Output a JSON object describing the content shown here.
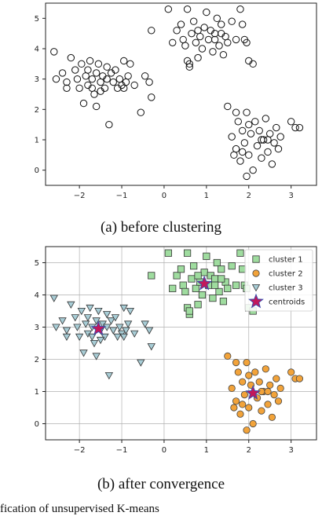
{
  "captions": {
    "a": "(a) before clustering",
    "b": "(b) after convergence",
    "figure": "fication of unsupervised K-means"
  },
  "colors": {
    "cluster1": "#9fdc9f",
    "cluster2": "#f2a33a",
    "cluster3": "#a8cdd6",
    "centroid": "#c2185b",
    "centroid_edge": "#3949ab",
    "grid": "#b0b0b0"
  },
  "chart_data": [
    {
      "type": "scatter",
      "title": "",
      "xlabel": "",
      "ylabel": "",
      "xlim": [
        -2.8,
        3.6
      ],
      "ylim": [
        -0.5,
        5.5
      ],
      "xticks": [
        -2,
        -1,
        0,
        1,
        2,
        3
      ],
      "yticks": [
        0,
        1,
        2,
        3,
        4,
        5
      ],
      "grid": false,
      "series": [
        {
          "marker": "open-circle",
          "points": [
            [
              -2.6,
              3.9
            ],
            [
              -2.55,
              3.0
            ],
            [
              -2.4,
              3.2
            ],
            [
              -2.3,
              2.9
            ],
            [
              -2.2,
              3.7
            ],
            [
              -2.1,
              3.3
            ],
            [
              -2.05,
              3.0
            ],
            [
              -2.0,
              2.7
            ],
            [
              -1.95,
              3.5
            ],
            [
              -1.9,
              2.2
            ],
            [
              -1.85,
              3.1
            ],
            [
              -1.8,
              2.8
            ],
            [
              -1.75,
              3.6
            ],
            [
              -1.7,
              3.0
            ],
            [
              -1.65,
              2.5
            ],
            [
              -1.6,
              3.2
            ],
            [
              -1.6,
              2.1
            ],
            [
              -1.55,
              3.5
            ],
            [
              -1.5,
              2.9
            ],
            [
              -1.45,
              3.1
            ],
            [
              -1.4,
              2.7
            ],
            [
              -1.35,
              3.0
            ],
            [
              -1.3,
              1.5
            ],
            [
              -1.25,
              3.2
            ],
            [
              -1.2,
              2.9
            ],
            [
              -1.15,
              3.3
            ],
            [
              -1.1,
              2.7
            ],
            [
              -1.05,
              3.0
            ],
            [
              -1.0,
              2.8
            ],
            [
              -0.95,
              3.6
            ],
            [
              -0.9,
              2.9
            ],
            [
              -0.85,
              3.1
            ],
            [
              -0.8,
              3.5
            ],
            [
              -0.7,
              2.8
            ],
            [
              -0.55,
              1.9
            ],
            [
              -0.45,
              3.1
            ],
            [
              -0.35,
              2.9
            ],
            [
              -0.3,
              2.4
            ],
            [
              -1.7,
              2.7
            ],
            [
              -2.3,
              2.7
            ],
            [
              -1.35,
              3.4
            ],
            [
              -1.8,
              3.3
            ],
            [
              -0.95,
              2.7
            ],
            [
              -1.5,
              2.6
            ],
            [
              0.1,
              5.3
            ],
            [
              0.2,
              4.2
            ],
            [
              0.3,
              4.6
            ],
            [
              0.4,
              4.8
            ],
            [
              0.45,
              4.3
            ],
            [
              0.5,
              4.1
            ],
            [
              0.55,
              3.6
            ],
            [
              0.6,
              3.4
            ],
            [
              0.65,
              4.5
            ],
            [
              0.7,
              4.9
            ],
            [
              0.75,
              4.2
            ],
            [
              0.8,
              3.7
            ],
            [
              0.85,
              4.4
            ],
            [
              0.9,
              4.0
            ],
            [
              0.95,
              4.7
            ],
            [
              1.0,
              5.2
            ],
            [
              1.05,
              4.3
            ],
            [
              1.1,
              4.6
            ],
            [
              1.15,
              3.9
            ],
            [
              1.2,
              4.5
            ],
            [
              1.25,
              5.0
            ],
            [
              1.3,
              4.1
            ],
            [
              1.35,
              4.8
            ],
            [
              1.4,
              3.8
            ],
            [
              1.45,
              4.4
            ],
            [
              1.5,
              4.2
            ],
            [
              1.6,
              4.9
            ],
            [
              1.7,
              4.3
            ],
            [
              1.8,
              5.3
            ],
            [
              1.85,
              4.8
            ],
            [
              1.9,
              4.3
            ],
            [
              1.95,
              4.2
            ],
            [
              2.0,
              3.6
            ],
            [
              2.1,
              3.5
            ],
            [
              0.55,
              5.3
            ],
            [
              -0.3,
              4.6
            ],
            [
              0.6,
              3.5
            ],
            [
              1.35,
              4.5
            ],
            [
              0.8,
              4.6
            ],
            [
              1.2,
              4.3
            ],
            [
              1.5,
              2.1
            ],
            [
              1.6,
              1.1
            ],
            [
              1.7,
              0.7
            ],
            [
              1.75,
              1.6
            ],
            [
              1.8,
              0.3
            ],
            [
              1.85,
              1.3
            ],
            [
              1.9,
              0.9
            ],
            [
              1.95,
              1.9
            ],
            [
              2.0,
              0.5
            ],
            [
              2.05,
              1.2
            ],
            [
              2.1,
              0.0
            ],
            [
              2.15,
              1.6
            ],
            [
              2.2,
              0.8
            ],
            [
              2.25,
              1.3
            ],
            [
              2.3,
              0.4
            ],
            [
              2.35,
              1.0
            ],
            [
              2.4,
              1.7
            ],
            [
              2.45,
              0.6
            ],
            [
              2.5,
              1.2
            ],
            [
              2.55,
              0.2
            ],
            [
              2.6,
              0.9
            ],
            [
              2.65,
              1.4
            ],
            [
              2.7,
              0.7
            ],
            [
              3.0,
              1.6
            ],
            [
              3.1,
              1.4
            ],
            [
              3.2,
              1.4
            ],
            [
              1.95,
              -0.2
            ],
            [
              2.3,
              1.0
            ],
            [
              1.65,
              0.5
            ],
            [
              2.75,
              1.1
            ],
            [
              2.0,
              1.5
            ],
            [
              1.85,
              0.6
            ],
            [
              2.45,
              1.0
            ],
            [
              1.7,
              1.9
            ]
          ]
        }
      ]
    },
    {
      "type": "scatter",
      "title": "",
      "xlabel": "",
      "ylabel": "",
      "xlim": [
        -2.8,
        3.6
      ],
      "ylim": [
        -0.5,
        5.5
      ],
      "xticks": [
        -2,
        -1,
        0,
        1,
        2,
        3
      ],
      "yticks": [
        0,
        1,
        2,
        3,
        4,
        5
      ],
      "grid": true,
      "legend_position": "top-right",
      "series": [
        {
          "name": "cluster 1",
          "marker": "square",
          "points": [
            [
              0.1,
              5.3
            ],
            [
              0.2,
              4.2
            ],
            [
              0.3,
              4.6
            ],
            [
              0.4,
              4.8
            ],
            [
              0.45,
              4.3
            ],
            [
              0.5,
              4.1
            ],
            [
              0.55,
              3.6
            ],
            [
              0.6,
              3.4
            ],
            [
              0.65,
              4.5
            ],
            [
              0.7,
              4.9
            ],
            [
              0.75,
              4.2
            ],
            [
              0.8,
              3.7
            ],
            [
              0.85,
              4.4
            ],
            [
              0.9,
              4.0
            ],
            [
              0.95,
              4.7
            ],
            [
              1.0,
              5.2
            ],
            [
              1.05,
              4.3
            ],
            [
              1.1,
              4.6
            ],
            [
              1.15,
              3.9
            ],
            [
              1.2,
              4.5
            ],
            [
              1.25,
              5.0
            ],
            [
              1.3,
              4.1
            ],
            [
              1.35,
              4.8
            ],
            [
              1.4,
              3.8
            ],
            [
              1.45,
              4.4
            ],
            [
              1.5,
              4.2
            ],
            [
              1.6,
              4.9
            ],
            [
              1.7,
              4.3
            ],
            [
              1.8,
              5.3
            ],
            [
              1.85,
              4.8
            ],
            [
              1.9,
              4.3
            ],
            [
              1.95,
              4.2
            ],
            [
              2.0,
              3.6
            ],
            [
              2.1,
              3.5
            ],
            [
              0.55,
              5.3
            ],
            [
              -0.3,
              4.6
            ],
            [
              0.6,
              3.5
            ],
            [
              1.35,
              4.5
            ],
            [
              0.8,
              4.6
            ],
            [
              1.2,
              4.3
            ]
          ]
        },
        {
          "name": "cluster 2",
          "marker": "circle",
          "points": [
            [
              1.5,
              2.1
            ],
            [
              1.6,
              1.1
            ],
            [
              1.7,
              0.7
            ],
            [
              1.75,
              1.6
            ],
            [
              1.8,
              0.3
            ],
            [
              1.85,
              1.3
            ],
            [
              1.9,
              0.9
            ],
            [
              1.95,
              1.9
            ],
            [
              2.0,
              0.5
            ],
            [
              2.05,
              1.2
            ],
            [
              2.1,
              0.0
            ],
            [
              2.15,
              1.6
            ],
            [
              2.2,
              0.8
            ],
            [
              2.25,
              1.3
            ],
            [
              2.3,
              0.4
            ],
            [
              2.35,
              1.0
            ],
            [
              2.4,
              1.7
            ],
            [
              2.45,
              0.6
            ],
            [
              2.5,
              1.2
            ],
            [
              2.55,
              0.2
            ],
            [
              2.6,
              0.9
            ],
            [
              2.65,
              1.4
            ],
            [
              2.7,
              0.7
            ],
            [
              3.0,
              1.6
            ],
            [
              3.1,
              1.4
            ],
            [
              3.2,
              1.4
            ],
            [
              1.95,
              -0.2
            ],
            [
              2.3,
              1.0
            ],
            [
              1.65,
              0.5
            ],
            [
              2.75,
              1.1
            ],
            [
              2.0,
              1.5
            ],
            [
              1.85,
              0.6
            ],
            [
              2.45,
              1.0
            ],
            [
              1.7,
              1.9
            ]
          ]
        },
        {
          "name": "cluster 3",
          "marker": "triangle-down",
          "points": [
            [
              -2.6,
              3.9
            ],
            [
              -2.55,
              3.0
            ],
            [
              -2.4,
              3.2
            ],
            [
              -2.3,
              2.9
            ],
            [
              -2.2,
              3.7
            ],
            [
              -2.1,
              3.3
            ],
            [
              -2.05,
              3.0
            ],
            [
              -2.0,
              2.7
            ],
            [
              -1.95,
              3.5
            ],
            [
              -1.9,
              2.2
            ],
            [
              -1.85,
              3.1
            ],
            [
              -1.8,
              2.8
            ],
            [
              -1.75,
              3.6
            ],
            [
              -1.7,
              3.0
            ],
            [
              -1.65,
              2.5
            ],
            [
              -1.6,
              3.2
            ],
            [
              -1.6,
              2.1
            ],
            [
              -1.55,
              3.5
            ],
            [
              -1.5,
              2.9
            ],
            [
              -1.45,
              3.1
            ],
            [
              -1.4,
              2.7
            ],
            [
              -1.35,
              3.0
            ],
            [
              -1.3,
              1.5
            ],
            [
              -1.25,
              3.2
            ],
            [
              -1.2,
              2.9
            ],
            [
              -1.15,
              3.3
            ],
            [
              -1.1,
              2.7
            ],
            [
              -1.05,
              3.0
            ],
            [
              -1.0,
              2.8
            ],
            [
              -0.95,
              3.6
            ],
            [
              -0.9,
              2.9
            ],
            [
              -0.85,
              3.1
            ],
            [
              -0.8,
              3.5
            ],
            [
              -0.7,
              2.8
            ],
            [
              -0.55,
              1.9
            ],
            [
              -0.45,
              3.1
            ],
            [
              -0.35,
              2.9
            ],
            [
              -0.3,
              2.4
            ],
            [
              -1.7,
              2.7
            ],
            [
              -2.3,
              2.7
            ],
            [
              -1.35,
              3.4
            ],
            [
              -1.8,
              3.3
            ],
            [
              -0.95,
              2.7
            ],
            [
              -1.5,
              2.6
            ]
          ]
        },
        {
          "name": "centroids",
          "marker": "star",
          "points": [
            [
              0.95,
              4.35
            ],
            [
              2.1,
              0.95
            ],
            [
              -1.55,
              2.95
            ]
          ]
        }
      ]
    }
  ]
}
